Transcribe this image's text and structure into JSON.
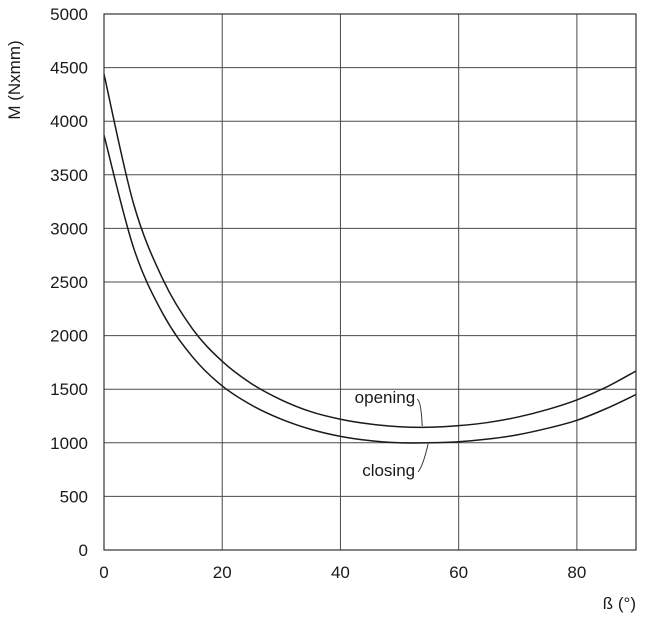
{
  "chart_data": {
    "type": "line",
    "xlabel": "ß (°)",
    "ylabel": "M (Nxmm)",
    "xlim": [
      0,
      90
    ],
    "ylim": [
      0,
      5000
    ],
    "xticks": [
      0,
      20,
      40,
      60,
      80
    ],
    "yticks": [
      0,
      500,
      1000,
      1500,
      2000,
      2500,
      3000,
      3500,
      4000,
      4500,
      5000
    ],
    "grid": true,
    "series": [
      {
        "name": "opening",
        "x": [
          0,
          5,
          10,
          15,
          20,
          25,
          30,
          35,
          40,
          45,
          50,
          55,
          60,
          65,
          70,
          75,
          80,
          85,
          90
        ],
        "y": [
          4440,
          3230,
          2520,
          2060,
          1760,
          1550,
          1400,
          1290,
          1220,
          1175,
          1150,
          1145,
          1160,
          1190,
          1240,
          1310,
          1400,
          1520,
          1670
        ]
      },
      {
        "name": "closing",
        "x": [
          0,
          5,
          10,
          15,
          20,
          25,
          30,
          35,
          40,
          45,
          50,
          55,
          60,
          65,
          70,
          75,
          80,
          85,
          90
        ],
        "y": [
          3870,
          2820,
          2200,
          1800,
          1530,
          1350,
          1220,
          1125,
          1060,
          1020,
          1000,
          1000,
          1010,
          1035,
          1075,
          1135,
          1210,
          1320,
          1450
        ]
      }
    ],
    "annotations": [
      {
        "text": "opening",
        "series": "opening",
        "at_x": 54
      },
      {
        "text": "closing",
        "series": "closing",
        "at_x": 55
      }
    ]
  }
}
